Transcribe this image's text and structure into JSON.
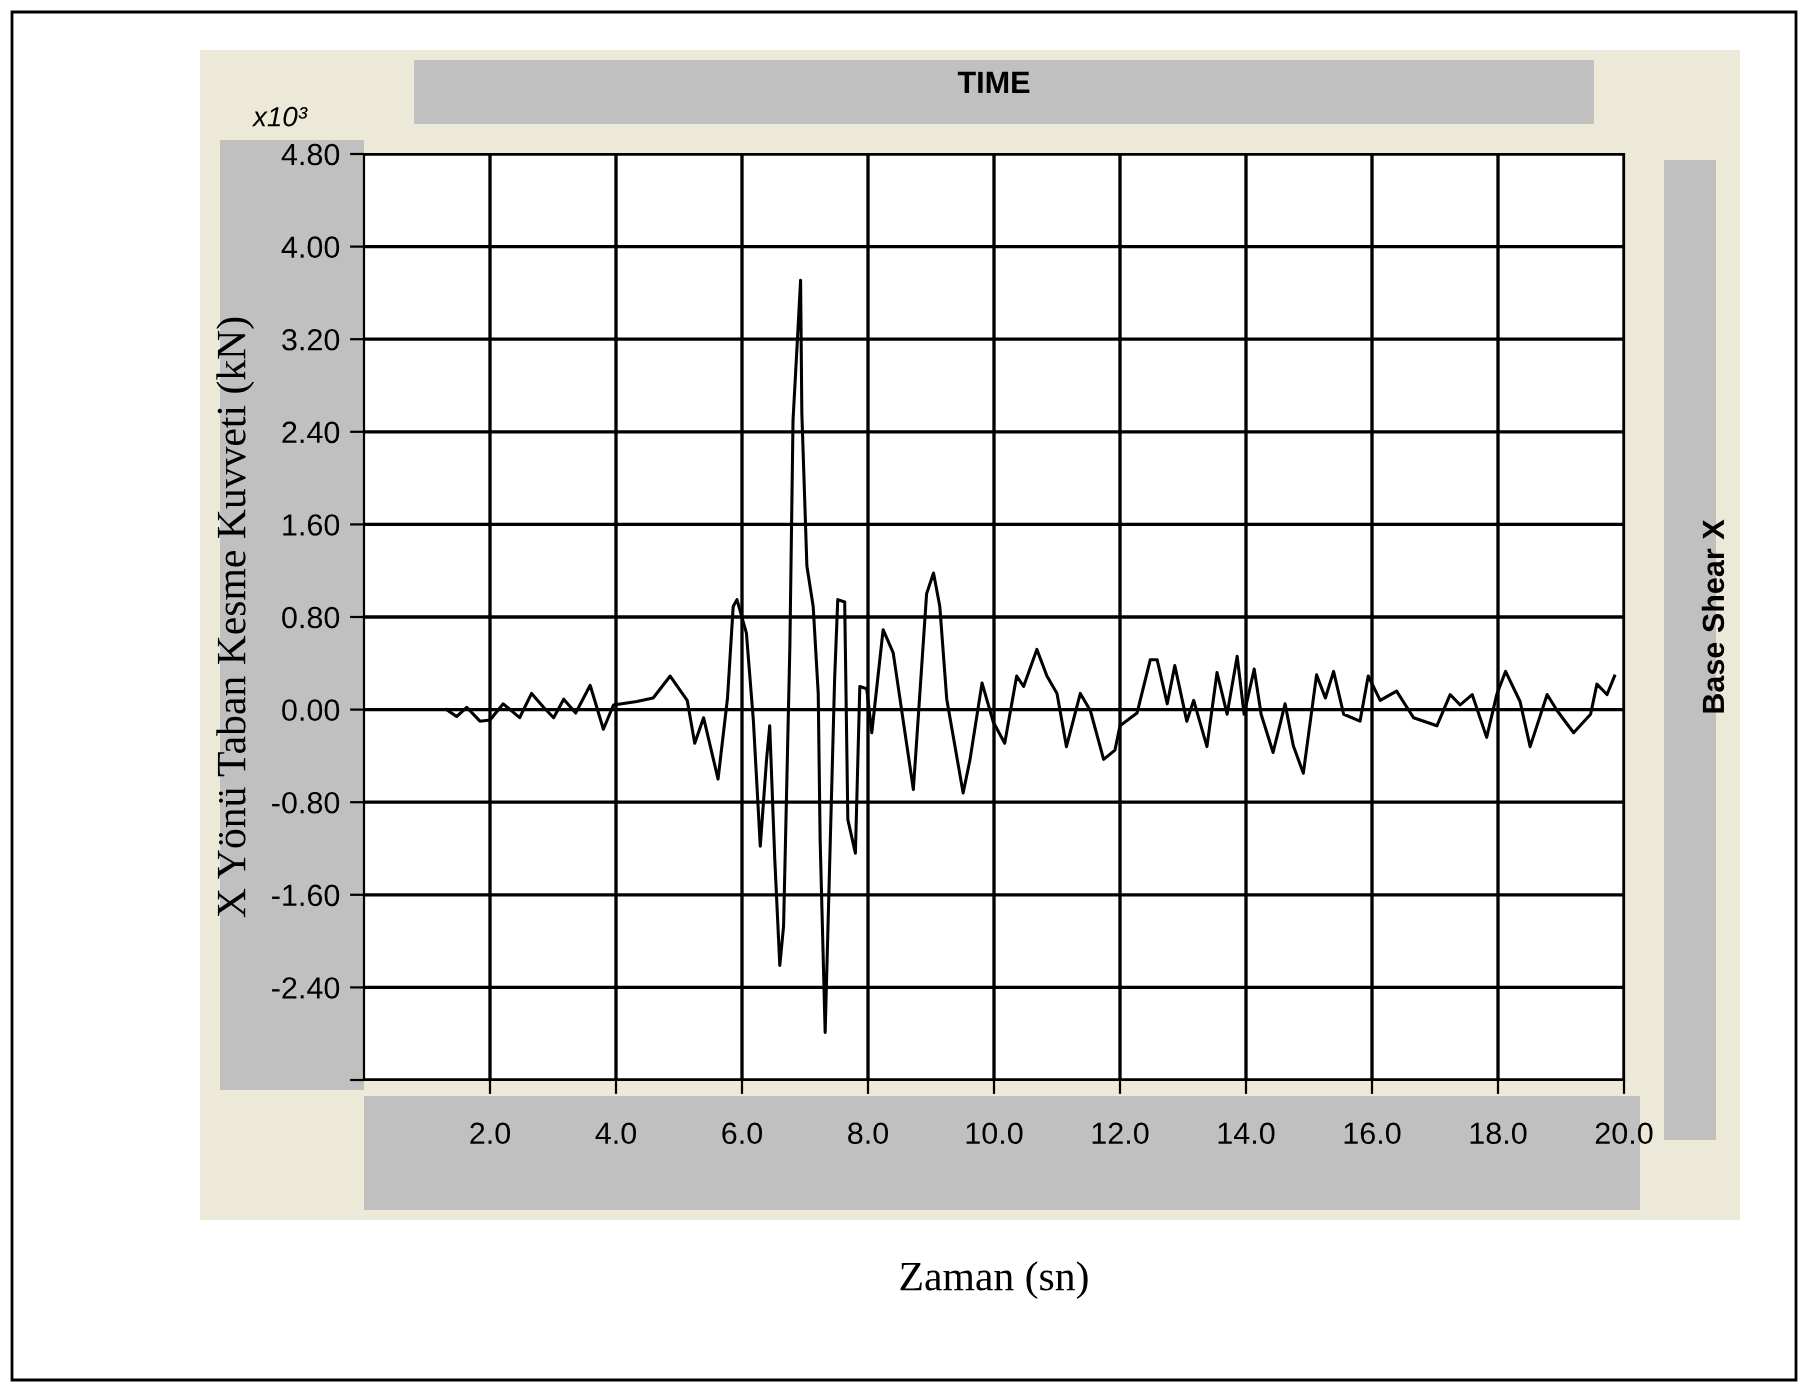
{
  "chart_data": {
    "type": "line",
    "title": "TIME",
    "xlabel": "Zaman (sn)",
    "ylabel": "X Yönü Taban Kesme Kuvveti (kN)",
    "y2label": "Base Shear X",
    "annotations": [
      "x10³"
    ],
    "xlim": [
      0,
      20
    ],
    "ylim": [
      -3.2,
      4.8
    ],
    "xticks": [
      {
        "value": 2,
        "label": "2.0"
      },
      {
        "value": 4,
        "label": "4.0"
      },
      {
        "value": 6,
        "label": "6.0"
      },
      {
        "value": 8,
        "label": "8.0"
      },
      {
        "value": 10,
        "label": "10.0"
      },
      {
        "value": 12,
        "label": "12.0"
      },
      {
        "value": 14,
        "label": "14.0"
      },
      {
        "value": 16,
        "label": "16.0"
      },
      {
        "value": 18,
        "label": "18.0"
      },
      {
        "value": 20,
        "label": "20.0"
      }
    ],
    "yticks": [
      {
        "value": -3.2,
        "label": null
      },
      {
        "value": -2.4,
        "label": "-2.40"
      },
      {
        "value": -1.6,
        "label": "-1.60"
      },
      {
        "value": -0.8,
        "label": "-0.80"
      },
      {
        "value": 0,
        "label": "0.00"
      },
      {
        "value": 0.8,
        "label": "0.80"
      },
      {
        "value": 1.6,
        "label": "1.60"
      },
      {
        "value": 2.4,
        "label": "2.40"
      },
      {
        "value": 3.2,
        "label": "3.20"
      },
      {
        "value": 4.0,
        "label": "4.00"
      },
      {
        "value": 4.8,
        "label": "4.80"
      }
    ],
    "grid": true,
    "marker": "none",
    "line_style": "solid",
    "series": [
      {
        "color": "#000000",
        "x": [
          1.31,
          1.47,
          1.63,
          1.84,
          2.0,
          2.21,
          2.47,
          2.66,
          2.85,
          3.01,
          3.17,
          3.36,
          3.59,
          3.8,
          3.96,
          4.33,
          4.59,
          4.86,
          5.13,
          5.25,
          5.39,
          5.62,
          5.77,
          5.86,
          5.92,
          6.07,
          6.18,
          6.29,
          6.39,
          6.44,
          6.52,
          6.6,
          6.66,
          6.76,
          6.81,
          6.89,
          6.93,
          6.95,
          7.03,
          7.13,
          7.21,
          7.24,
          7.32,
          7.47,
          7.52,
          7.63,
          7.68,
          7.8,
          7.87,
          7.98,
          8.06,
          8.24,
          8.4,
          8.72,
          8.93,
          9.04,
          9.14,
          9.25,
          9.51,
          9.62,
          9.81,
          9.99,
          10.17,
          10.36,
          10.47,
          10.68,
          10.84,
          11.0,
          11.15,
          11.37,
          11.53,
          11.74,
          11.92,
          12.0,
          12.27,
          12.48,
          12.59,
          12.75,
          12.87,
          13.06,
          13.17,
          13.38,
          13.54,
          13.7,
          13.86,
          13.97,
          14.13,
          14.24,
          14.43,
          14.62,
          14.75,
          14.91,
          15.12,
          15.26,
          15.39,
          15.55,
          15.81,
          15.94,
          16.13,
          16.39,
          16.66,
          17.03,
          17.24,
          17.4,
          17.59,
          17.82,
          17.98,
          18.12,
          18.35,
          18.51,
          18.78,
          18.94,
          19.2,
          19.47,
          19.57,
          19.73,
          19.85
        ],
        "values": [
          0,
          -0.06,
          0.02,
          -0.1,
          -0.09,
          0.05,
          -0.07,
          0.14,
          0.02,
          -0.07,
          0.09,
          -0.03,
          0.21,
          -0.17,
          0.04,
          0.07,
          0.1,
          0.29,
          0.08,
          -0.29,
          -0.07,
          -0.6,
          0.1,
          0.89,
          0.95,
          0.66,
          -0.09,
          -1.18,
          -0.43,
          -0.14,
          -1.29,
          -2.21,
          -1.87,
          0.55,
          2.5,
          3.3,
          3.71,
          2.56,
          1.24,
          0.89,
          0.14,
          -1.12,
          -2.79,
          0.26,
          0.95,
          0.93,
          -0.95,
          -1.24,
          0.2,
          0.18,
          -0.2,
          0.69,
          0.49,
          -0.69,
          1.0,
          1.18,
          0.89,
          0.09,
          -0.72,
          -0.43,
          0.23,
          -0.11,
          -0.29,
          0.29,
          0.2,
          0.52,
          0.29,
          0.14,
          -0.32,
          0.14,
          -0.01,
          -0.43,
          -0.35,
          -0.14,
          -0.03,
          0.43,
          0.43,
          0.05,
          0.38,
          -0.1,
          0.08,
          -0.32,
          0.32,
          -0.04,
          0.46,
          -0.04,
          0.35,
          -0.04,
          -0.37,
          0.05,
          -0.31,
          -0.55,
          0.3,
          0.1,
          0.33,
          -0.04,
          -0.1,
          0.29,
          0.08,
          0.16,
          -0.07,
          -0.14,
          0.13,
          0.04,
          0.13,
          -0.24,
          0.13,
          0.33,
          0.07,
          -0.32,
          0.13,
          -0.01,
          -0.2,
          -0.04,
          0.22,
          0.13,
          0.29
        ]
      }
    ]
  }
}
